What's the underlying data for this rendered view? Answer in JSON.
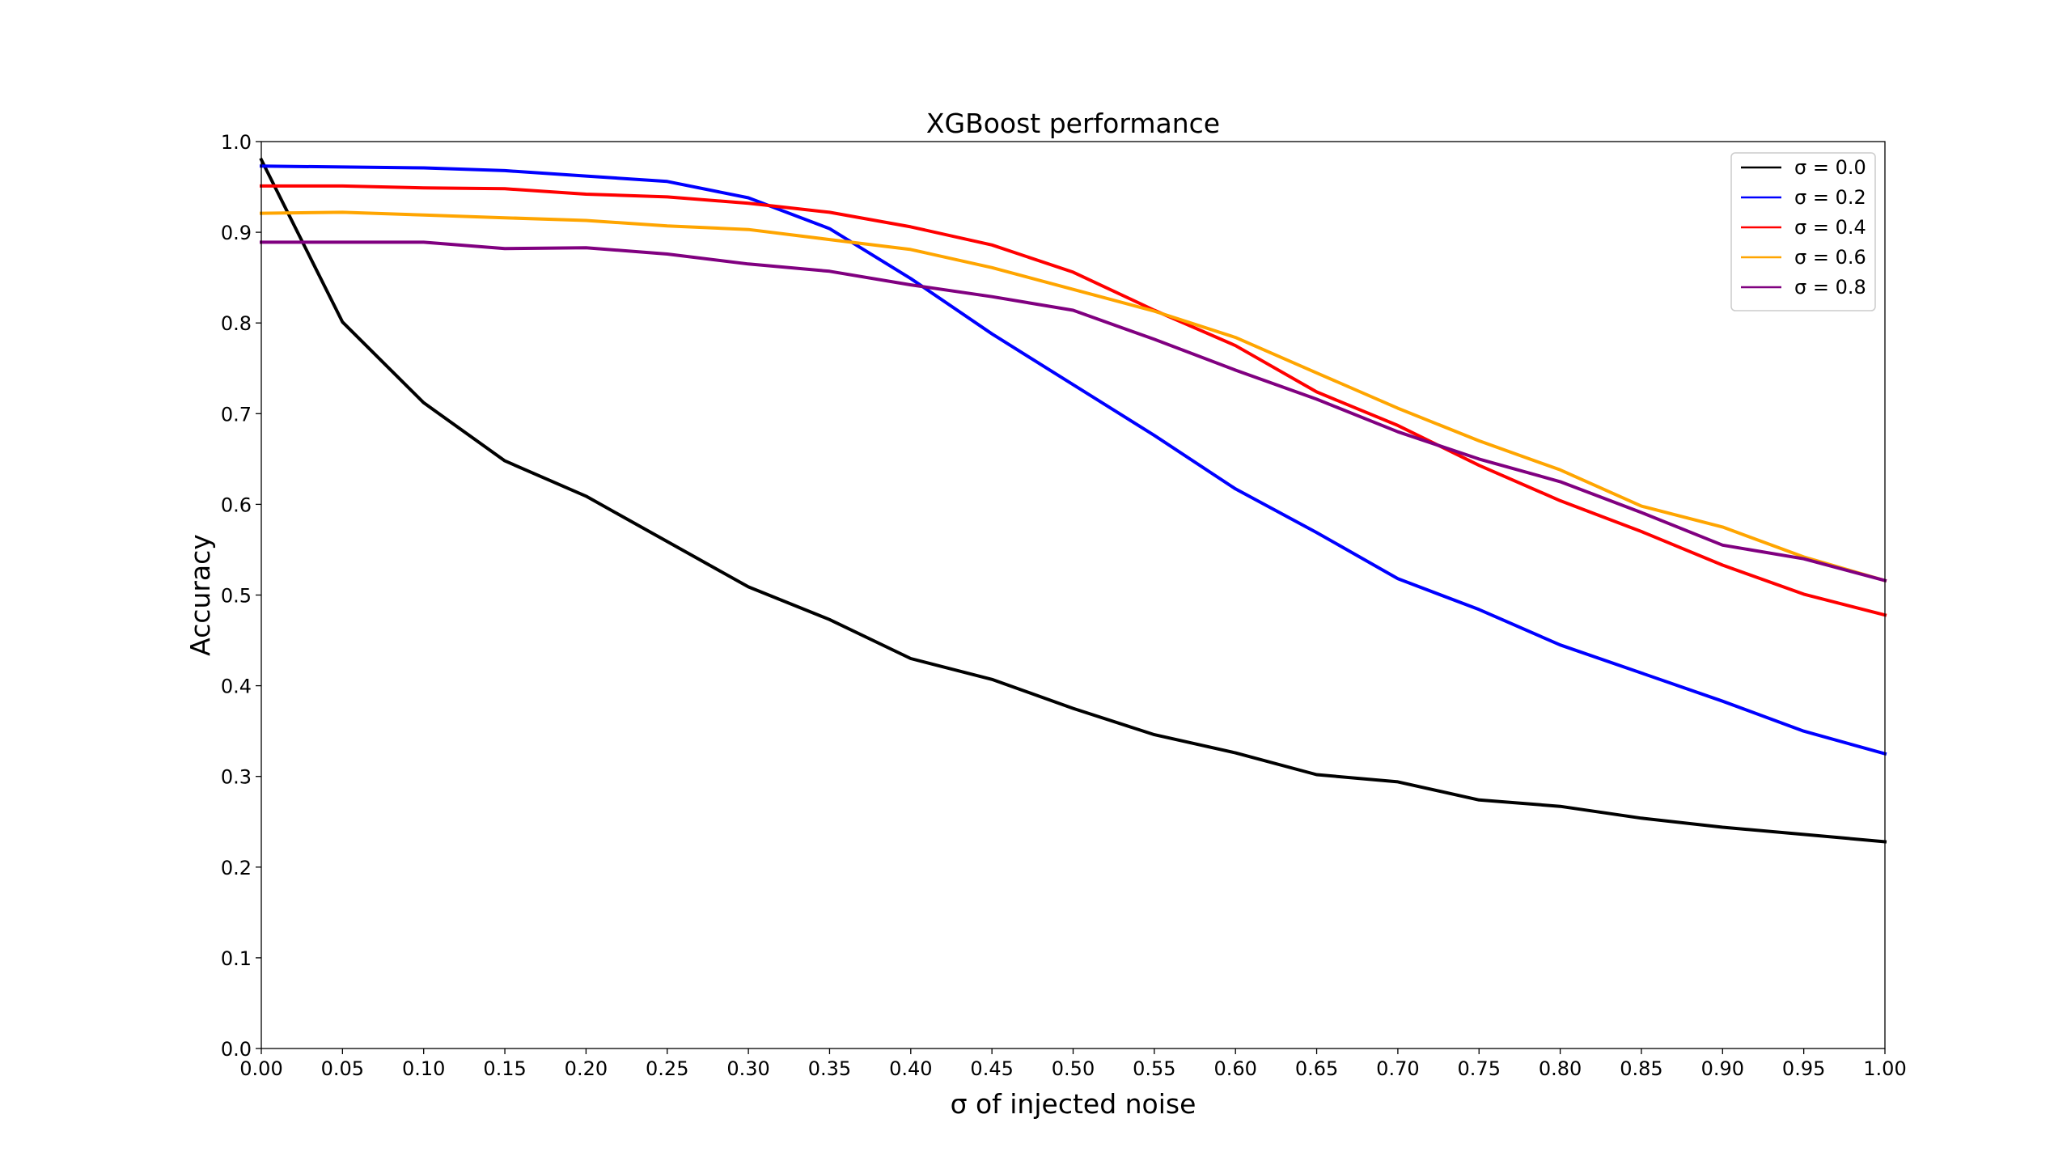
{
  "chart_data": {
    "type": "line",
    "title": "XGBoost performance",
    "xlabel": "σ of injected noise",
    "ylabel": "Accuracy",
    "xlim": [
      0,
      1
    ],
    "ylim": [
      0,
      1
    ],
    "grid": false,
    "legend_position": "top-right",
    "x": [
      0.0,
      0.05,
      0.1,
      0.15,
      0.2,
      0.25,
      0.3,
      0.35,
      0.4,
      0.45,
      0.5,
      0.55,
      0.6,
      0.65,
      0.7,
      0.75,
      0.8,
      0.85,
      0.9,
      0.95,
      1.0
    ],
    "x_tick_labels": [
      "0.00",
      "0.05",
      "0.10",
      "0.15",
      "0.20",
      "0.25",
      "0.30",
      "0.35",
      "0.40",
      "0.45",
      "0.50",
      "0.55",
      "0.60",
      "0.65",
      "0.70",
      "0.75",
      "0.80",
      "0.85",
      "0.90",
      "0.95",
      "1.00"
    ],
    "y_ticks": [
      0.0,
      0.1,
      0.2,
      0.3,
      0.4,
      0.5,
      0.6,
      0.7,
      0.8,
      0.9,
      1.0
    ],
    "y_tick_labels": [
      "0.0",
      "0.1",
      "0.2",
      "0.3",
      "0.4",
      "0.5",
      "0.6",
      "0.7",
      "0.8",
      "0.9",
      "1.0"
    ],
    "series": [
      {
        "name": "σ = 0.0",
        "color": "#000000",
        "values": [
          0.98,
          0.801,
          0.712,
          0.648,
          0.609,
          0.559,
          0.509,
          0.473,
          0.43,
          0.407,
          0.375,
          0.346,
          0.326,
          0.302,
          0.294,
          0.274,
          0.267,
          0.254,
          0.244,
          0.236,
          0.228
        ]
      },
      {
        "name": "σ = 0.2",
        "color": "#0000ff",
        "values": [
          0.973,
          0.972,
          0.971,
          0.968,
          0.962,
          0.956,
          0.938,
          0.904,
          0.849,
          0.788,
          0.732,
          0.676,
          0.617,
          0.569,
          0.518,
          0.484,
          0.445,
          0.414,
          0.383,
          0.35,
          0.325
        ]
      },
      {
        "name": "σ = 0.4",
        "color": "#ff0000",
        "values": [
          0.951,
          0.951,
          0.949,
          0.948,
          0.942,
          0.939,
          0.932,
          0.922,
          0.906,
          0.886,
          0.856,
          0.814,
          0.775,
          0.724,
          0.687,
          0.643,
          0.604,
          0.57,
          0.533,
          0.501,
          0.478
        ]
      },
      {
        "name": "σ = 0.6",
        "color": "#ffa500",
        "values": [
          0.921,
          0.922,
          0.919,
          0.916,
          0.913,
          0.907,
          0.903,
          0.892,
          0.881,
          0.861,
          0.837,
          0.813,
          0.784,
          0.745,
          0.706,
          0.67,
          0.638,
          0.598,
          0.575,
          0.542,
          0.516
        ]
      },
      {
        "name": "σ = 0.8",
        "color": "#800080",
        "values": [
          0.889,
          0.889,
          0.889,
          0.882,
          0.883,
          0.876,
          0.865,
          0.857,
          0.842,
          0.829,
          0.814,
          0.782,
          0.748,
          0.716,
          0.68,
          0.65,
          0.625,
          0.591,
          0.555,
          0.54,
          0.516
        ]
      }
    ]
  }
}
